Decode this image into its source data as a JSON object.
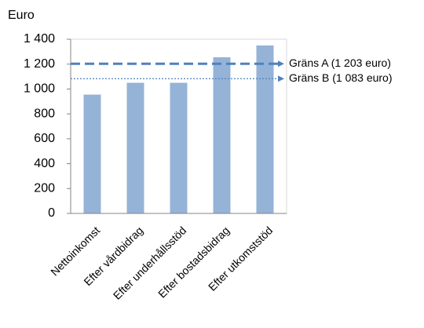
{
  "chart_data": {
    "type": "bar",
    "y_axis_label": "Euro",
    "categories": [
      "Nettoinkomst",
      "Efter vårdbidrag",
      "Efter underhållsstöd",
      "Efter bostadsbidrag",
      "Efter utkomststöd"
    ],
    "values": [
      955,
      1050,
      1050,
      1255,
      1350
    ],
    "color": "#95b3d7",
    "ylim": [
      0,
      1400
    ],
    "yticks": [
      0,
      200,
      400,
      600,
      800,
      {
        "value": 1000,
        "label": "1 000"
      },
      {
        "value": 1200,
        "label": "1 200"
      },
      {
        "value": 1400,
        "label": "1 400"
      }
    ],
    "grid": false,
    "reference_lines": [
      {
        "label": "Gräns A (1 203 euro)",
        "value": 1203,
        "style": "thick-dashed",
        "color": "#4f81bd"
      },
      {
        "label": "Gräns B (1 083 euro)",
        "value": 1083,
        "style": "thin-dotted",
        "color": "#4f81bd"
      }
    ]
  }
}
